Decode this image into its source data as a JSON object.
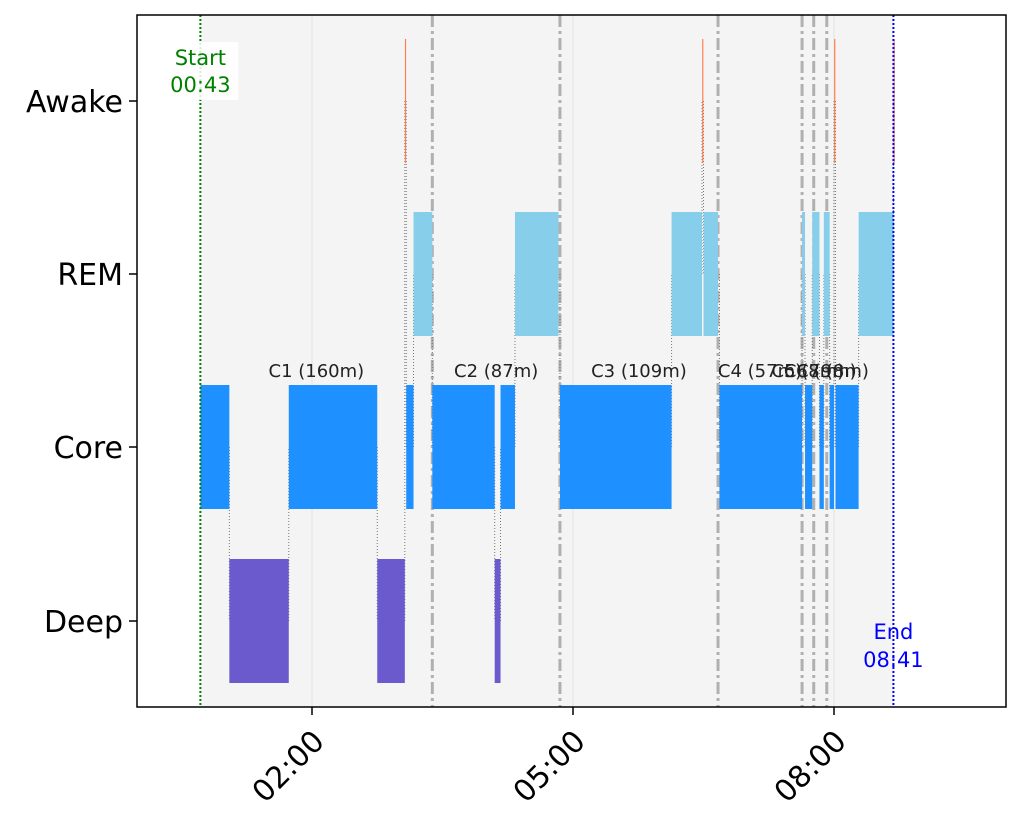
{
  "chart_data": {
    "type": "timeline",
    "y_categories": [
      "Deep",
      "Core",
      "REM",
      "Awake"
    ],
    "x_ticks": [
      {
        "value": 2.0,
        "label": "02:00"
      },
      {
        "value": 5.0,
        "label": "05:00"
      },
      {
        "value": 8.0,
        "label": "08:00"
      }
    ],
    "xlim": [
      -0.0,
      10.0
    ],
    "grid": false,
    "colors": {
      "Deep": "#6a5acd",
      "Core": "#1e90ff",
      "REM": "#87ceeb",
      "Awake": "#ff7f50",
      "background": "#f4f4f4",
      "start": "#008000",
      "end": "#0000ff",
      "cycle_boundary": "#b0b0b0"
    },
    "segments": [
      {
        "stage": "Core",
        "start": 0.717,
        "end": 1.05
      },
      {
        "stage": "Deep",
        "start": 1.05,
        "end": 1.733
      },
      {
        "stage": "Core",
        "start": 1.733,
        "end": 2.75
      },
      {
        "stage": "Deep",
        "start": 2.75,
        "end": 3.067
      },
      {
        "stage": "Awake",
        "start": 3.067,
        "end": 3.083
      },
      {
        "stage": "Core",
        "start": 3.083,
        "end": 3.167
      },
      {
        "stage": "REM",
        "start": 3.167,
        "end": 3.383
      },
      {
        "stage": "Core",
        "start": 3.383,
        "end": 4.1
      },
      {
        "stage": "Deep",
        "start": 4.1,
        "end": 4.167
      },
      {
        "stage": "Core",
        "start": 4.167,
        "end": 4.333
      },
      {
        "stage": "REM",
        "start": 4.333,
        "end": 4.833
      },
      {
        "stage": "Core",
        "start": 4.85,
        "end": 6.133
      },
      {
        "stage": "REM",
        "start": 6.133,
        "end": 6.483
      },
      {
        "stage": "Awake",
        "start": 6.483,
        "end": 6.5
      },
      {
        "stage": "REM",
        "start": 6.5,
        "end": 6.667
      },
      {
        "stage": "Core",
        "start": 6.683,
        "end": 7.633
      },
      {
        "stage": "REM",
        "start": 7.633,
        "end": 7.667
      },
      {
        "stage": "Core",
        "start": 7.667,
        "end": 7.75
      },
      {
        "stage": "REM",
        "start": 7.75,
        "end": 7.833
      },
      {
        "stage": "Core",
        "start": 7.833,
        "end": 7.883
      },
      {
        "stage": "REM",
        "start": 7.883,
        "end": 7.95
      },
      {
        "stage": "Core",
        "start": 7.95,
        "end": 8.0
      },
      {
        "stage": "Awake",
        "start": 8.0,
        "end": 8.017
      },
      {
        "stage": "Core",
        "start": 8.017,
        "end": 8.283
      },
      {
        "stage": "REM",
        "start": 8.283,
        "end": 8.683
      },
      {
        "stage": "Awake",
        "start": 8.683,
        "end": 8.7
      }
    ],
    "cycle_boundaries": [
      3.383,
      4.85,
      6.667,
      7.633,
      7.767,
      7.917
    ],
    "cycle_labels": [
      {
        "label": "C1 (160m)",
        "x": 2.05
      },
      {
        "label": "C2 (87m)",
        "x": 4.117
      },
      {
        "label": "C3 (109m)",
        "x": 5.758
      },
      {
        "label": "C4 (57m)",
        "x": 7.15
      },
      {
        "label": "C5 (8m)",
        "x": 7.7
      },
      {
        "label": "C6 (9m)",
        "x": 7.842
      },
      {
        "label": "C7 (8m)",
        "x": 7.983
      }
    ],
    "start_marker": {
      "x": 0.717,
      "label_line1": "Start",
      "label_line2": "00:43"
    },
    "end_marker": {
      "x": 8.683,
      "label_line1": "End",
      "label_line2": "08:41"
    }
  }
}
